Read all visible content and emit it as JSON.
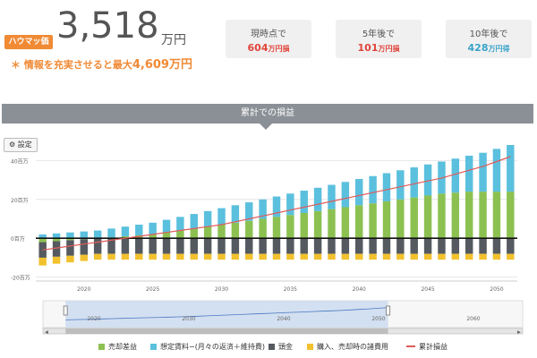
{
  "summary": {
    "badge": "ハウマッ価",
    "value": "3,518",
    "unit": "万円",
    "note_prefix": "＊ 情報を充実させると最大",
    "note_max": "4,609万円"
  },
  "cards": [
    {
      "label": "現時点で",
      "value": "604",
      "unit": "万円損",
      "kind": "loss"
    },
    {
      "label": "5年後で",
      "value": "101",
      "unit": "万円損",
      "kind": "loss"
    },
    {
      "label": "10年後で",
      "value": "428",
      "unit": "万円得",
      "kind": "gain"
    }
  ],
  "chart_header": "累計での損益",
  "settings_label": "設定",
  "colors": {
    "sale_profit": "#8cc152",
    "rent": "#5bc0de",
    "tax": "#555a60",
    "costs": "#f2c12e",
    "cumulative": "#e05a5a"
  },
  "chart_data": {
    "type": "bar",
    "stacked": true,
    "x_years": [
      2017,
      2018,
      2019,
      2020,
      2021,
      2022,
      2023,
      2024,
      2025,
      2026,
      2027,
      2028,
      2029,
      2030,
      2031,
      2032,
      2033,
      2034,
      2035,
      2036,
      2037,
      2038,
      2039,
      2040,
      2041,
      2042,
      2043,
      2044,
      2045,
      2046,
      2047,
      2048,
      2049,
      2050,
      2051
    ],
    "x_ticks": [
      "2020",
      "2025",
      "2030",
      "2035",
      "2040",
      "2045",
      "2050"
    ],
    "y_ticks": [
      "40百万",
      "20百万",
      "0百万",
      "-20百万"
    ],
    "ylim": [
      -22,
      48
    ],
    "y_unit": "百万",
    "series": [
      {
        "name": "売却差益",
        "key": "sale_profit",
        "values": [
          -2,
          -1.5,
          -1,
          -0.5,
          0,
          0.5,
          1,
          1.5,
          2,
          3,
          4,
          5,
          6,
          7,
          8,
          9,
          10,
          11,
          12,
          13,
          14,
          15,
          16,
          17,
          18,
          19,
          20,
          21,
          22,
          23,
          23.5,
          24,
          24,
          24,
          24
        ]
      },
      {
        "name": "想定賃料−(月々の返済＋維持費)",
        "key": "rent",
        "values": [
          2,
          2.5,
          3,
          3.5,
          4,
          4.5,
          5,
          5.5,
          6,
          6.5,
          7,
          7.5,
          8,
          8.5,
          9,
          9.5,
          10,
          10.5,
          11,
          11.5,
          12,
          12.5,
          13,
          13.5,
          14,
          14.5,
          15,
          15.5,
          16,
          16.5,
          17.5,
          18.5,
          20,
          22,
          24
        ]
      },
      {
        "name": "頭金",
        "key": "tax",
        "values": [
          -8,
          -8,
          -8,
          -8,
          -8,
          -8,
          -8,
          -8,
          -8,
          -8,
          -8,
          -8,
          -8,
          -8,
          -8,
          -8,
          -8,
          -8,
          -8,
          -8,
          -8,
          -8,
          -8,
          -8,
          -8,
          -8,
          -8,
          -8,
          -8,
          -8,
          -8,
          -8,
          -8,
          -8,
          -8
        ]
      },
      {
        "name": "購入、売却時の諸費用",
        "key": "costs",
        "values": [
          -4,
          -3.6,
          -3.4,
          -3.2,
          -3,
          -3,
          -3,
          -3,
          -3,
          -3,
          -3,
          -3,
          -3,
          -3,
          -3,
          -3,
          -3,
          -3,
          -3,
          -3,
          -3,
          -3,
          -3,
          -3,
          -3,
          -3,
          -3,
          -3,
          -3,
          -3,
          -3,
          -3,
          -3,
          -3,
          -3
        ]
      },
      {
        "name": "累計損益",
        "key": "cumulative",
        "type": "line",
        "values": [
          -6,
          -5,
          -4,
          -3,
          -2,
          -1,
          0,
          1,
          2,
          3,
          4,
          5,
          6,
          7,
          8.5,
          10,
          11.5,
          13,
          14.5,
          16,
          17.5,
          19,
          20.5,
          22,
          23.5,
          25,
          26.5,
          28,
          29.5,
          31,
          33,
          35,
          37,
          39.5,
          42
        ]
      }
    ],
    "navigator": {
      "x_ticks": [
        "2020",
        "2030",
        "2040",
        "2050",
        "2060"
      ]
    }
  }
}
